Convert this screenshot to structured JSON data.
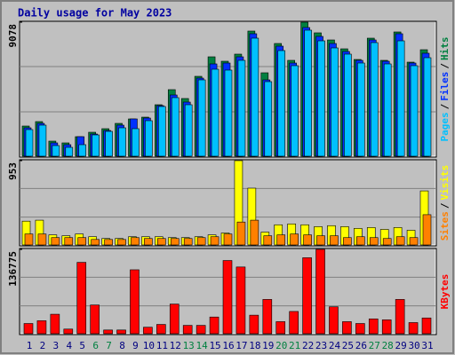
{
  "chart_data": [
    {
      "type": "bar",
      "title": "Daily usage for May 2023",
      "legend_separator": "/",
      "ylim": [
        0,
        9078
      ],
      "yticks": [
        9078
      ],
      "series": [
        {
          "name": "Hits",
          "color": "#008040",
          "values": [
            2044,
            2345,
            1022,
            902,
            1323,
            1623,
            1864,
            2224,
            2525,
            2645,
            3487,
            4509,
            3908,
            5411,
            6733,
            6433,
            6914,
            8477,
            5651,
            7635,
            6493,
            9078,
            8357,
            7875,
            7274,
            6553,
            7996,
            6493,
            8417,
            6372,
            7214
          ]
        },
        {
          "name": "Files",
          "color": "#0030ff",
          "values": [
            1924,
            2224,
            902,
            781,
            1323,
            1503,
            1743,
            2104,
            2525,
            2585,
            3427,
            4148,
            3667,
            5290,
            6252,
            6312,
            6733,
            8297,
            5170,
            7455,
            6312,
            8717,
            8116,
            7635,
            7094,
            6493,
            7875,
            6433,
            8297,
            6312,
            6974
          ]
        },
        {
          "name": "Pages",
          "color": "#00c0ff",
          "values": [
            1804,
            2104,
            721,
            601,
            781,
            1443,
            1683,
            1924,
            1864,
            2405,
            3367,
            3968,
            3487,
            5170,
            5892,
            5832,
            6493,
            7996,
            5050,
            7154,
            6132,
            8537,
            7815,
            7335,
            6914,
            6312,
            7695,
            6252,
            7815,
            6132,
            6673
          ]
        }
      ]
    },
    {
      "type": "bar",
      "legend_separator": "/",
      "ylim": [
        0,
        953
      ],
      "yticks": [
        953
      ],
      "series": [
        {
          "name": "Visits",
          "color": "#ffff00",
          "values": [
            269,
            280,
            114,
            104,
            124,
            93,
            73,
            73,
            93,
            93,
            93,
            83,
            83,
            93,
            114,
            135,
            953,
            642,
            145,
            228,
            238,
            228,
            207,
            218,
            207,
            187,
            197,
            176,
            197,
            166,
            611
          ]
        },
        {
          "name": "Sites",
          "color": "#ff8000",
          "values": [
            124,
            124,
            83,
            83,
            83,
            62,
            62,
            62,
            83,
            73,
            73,
            73,
            73,
            83,
            93,
            124,
            259,
            280,
            104,
            114,
            124,
            114,
            104,
            104,
            83,
            93,
            83,
            73,
            93,
            83,
            342
          ]
        }
      ]
    },
    {
      "type": "bar",
      "ylim": [
        0,
        136775
      ],
      "yticks": [
        136775
      ],
      "categories": [
        "1",
        "2",
        "3",
        "4",
        "5",
        "6",
        "7",
        "8",
        "9",
        "10",
        "11",
        "12",
        "13",
        "14",
        "15",
        "16",
        "17",
        "18",
        "19",
        "20",
        "21",
        "22",
        "23",
        "24",
        "25",
        "26",
        "27",
        "28",
        "29",
        "30",
        "31"
      ],
      "category_colors": [
        "#000080",
        "#000080",
        "#000080",
        "#000080",
        "#000080",
        "#008040",
        "#008040",
        "#000080",
        "#000080",
        "#000080",
        "#000080",
        "#000080",
        "#008040",
        "#008040",
        "#000080",
        "#000080",
        "#000080",
        "#000080",
        "#000080",
        "#008040",
        "#008040",
        "#000080",
        "#000080",
        "#000080",
        "#000080",
        "#000080",
        "#008040",
        "#008040",
        "#000080",
        "#000080",
        "#000080"
      ],
      "series": [
        {
          "name": "KBytes",
          "color": "#ff0000",
          "values": [
            16533,
            21042,
            31563,
            7515,
            115731,
            46593,
            6012,
            6012,
            103707,
            10521,
            15030,
            48096,
            13527,
            13527,
            27054,
            118737,
            108216,
            30060,
            55611,
            19539,
            36072,
            123246,
            136775,
            43587,
            19539,
            16533,
            24045,
            22542,
            55611,
            18036,
            25548
          ]
        }
      ]
    }
  ]
}
